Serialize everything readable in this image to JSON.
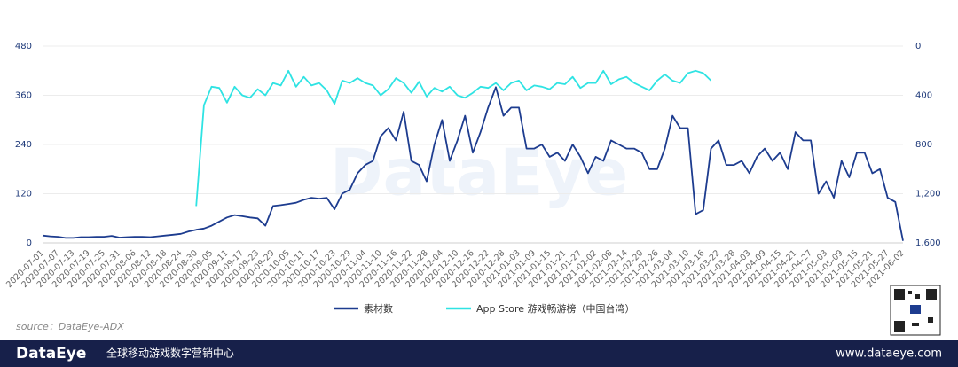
{
  "chart_data": {
    "type": "line",
    "watermark": "DataEye",
    "source": "source：DataEye-ADX",
    "categories": [
      "2020-07-01",
      null,
      "2020-07-07",
      null,
      "2020-07-13",
      null,
      "2020-07-19",
      null,
      "2020-07-25",
      null,
      "2020-07-31",
      null,
      "2020-08-06",
      null,
      "2020-08-12",
      null,
      "2020-08-18",
      null,
      "2020-08-24",
      null,
      "2020-08-30",
      null,
      "2020-09-05",
      null,
      "2020-09-11",
      null,
      "2020-09-17",
      null,
      "2020-09-23",
      null,
      "2020-09-29",
      null,
      "2020-10-05",
      null,
      "2020-10-11",
      null,
      "2020-10-17",
      null,
      "2020-10-23",
      null,
      "2020-10-29",
      null,
      "2020-11-04",
      null,
      "2020-11-10",
      null,
      "2020-11-16",
      null,
      "2020-11-22",
      null,
      "2020-11-28",
      null,
      "2020-12-04",
      null,
      "2020-12-10",
      null,
      "2020-12-16",
      null,
      "2020-12-22",
      null,
      "2020-12-28",
      null,
      "2021-01-03",
      null,
      "2021-01-09",
      null,
      "2021-01-15",
      null,
      "2021-01-21",
      null,
      "2021-01-27",
      null,
      "2021-02-02",
      null,
      "2021-02-08",
      null,
      "2021-02-14",
      null,
      "2021-02-20",
      null,
      "2021-02-26",
      null,
      "2021-03-04",
      null,
      "2021-03-10",
      null,
      "2021-03-16",
      null,
      "2021-03-22",
      null,
      "2021-03-28",
      null,
      "2021-04-03",
      null,
      "2021-04-09",
      null,
      "2021-04-15",
      null,
      "2021-04-21",
      null,
      "2021-04-27",
      null,
      "2021-05-03",
      null,
      "2021-05-09",
      null,
      "2021-05-15",
      null,
      "2021-05-21",
      null,
      "2021-05-27",
      null,
      "2021-06-02"
    ],
    "series": [
      {
        "name": "素材数",
        "color": "#1d3c8f",
        "values": [
          18,
          16,
          15,
          12,
          12,
          14,
          14,
          15,
          15,
          17,
          13,
          14,
          15,
          15,
          14,
          16,
          18,
          20,
          22,
          28,
          32,
          35,
          42,
          52,
          62,
          68,
          65,
          62,
          60,
          42,
          90,
          92,
          95,
          98,
          105,
          110,
          108,
          110,
          82,
          120,
          130,
          170,
          190,
          200,
          260,
          280,
          250,
          320,
          200,
          190,
          150,
          240,
          300,
          200,
          250,
          310,
          220,
          270,
          330,
          380,
          310,
          330,
          330,
          230,
          230,
          240,
          210,
          220,
          200,
          240,
          210,
          170,
          210,
          200,
          250,
          240,
          230,
          230,
          220,
          180,
          180,
          230,
          310,
          280,
          280,
          70,
          80,
          230,
          250,
          190,
          190,
          200,
          170,
          210,
          230,
          200,
          220,
          180,
          270,
          250,
          250,
          120,
          150,
          110,
          200,
          160,
          220,
          220,
          170,
          180,
          110,
          100,
          5
        ]
      },
      {
        "name": "App Store 游戏畅游榜（中国台湾）",
        "color": "#2fe3e3",
        "axis": "y2",
        "values": [
          null,
          null,
          null,
          null,
          null,
          null,
          null,
          null,
          null,
          null,
          null,
          null,
          null,
          null,
          null,
          null,
          null,
          null,
          null,
          null,
          1300,
          480,
          330,
          340,
          460,
          330,
          400,
          420,
          350,
          400,
          300,
          320,
          200,
          330,
          250,
          320,
          300,
          360,
          470,
          280,
          300,
          260,
          300,
          320,
          400,
          350,
          260,
          300,
          380,
          290,
          410,
          340,
          370,
          330,
          400,
          420,
          380,
          330,
          340,
          300,
          360,
          300,
          280,
          360,
          320,
          330,
          350,
          300,
          310,
          250,
          340,
          300,
          300,
          200,
          310,
          270,
          250,
          300,
          330,
          360,
          280,
          230,
          280,
          300,
          220,
          200,
          220,
          280,
          null,
          null,
          null,
          null,
          null,
          null,
          null,
          null,
          null,
          null,
          null,
          null,
          null,
          null,
          null,
          null,
          null,
          null,
          null,
          null,
          null,
          null,
          null,
          null,
          null
        ]
      }
    ],
    "ylim": [
      0,
      480
    ],
    "yticks": [
      0,
      120,
      240,
      360,
      480
    ],
    "y2lim": [
      1600,
      0
    ],
    "y2ticks": [
      0,
      400,
      800,
      {
        "value": 1200,
        "label": "1,200"
      },
      {
        "value": 1600,
        "label": "1,600"
      }
    ],
    "grid": true,
    "legend": "bottom"
  },
  "footer": {
    "logo": "DataEye",
    "slogan": "全球移动游戏数字营销中心",
    "website": "www.dataeye.com"
  }
}
